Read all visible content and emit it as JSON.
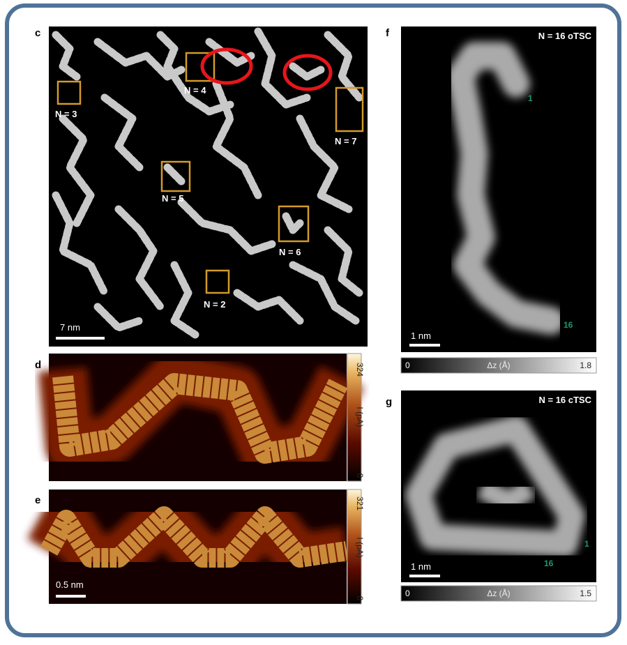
{
  "panels": {
    "c": {
      "label": "c",
      "annotations": [
        "N = 3",
        "N = 4",
        "N = 7",
        "N = 5",
        "N = 6",
        "N = 2"
      ],
      "scale_bar": "7 nm"
    },
    "d": {
      "label": "d",
      "colorbar": {
        "max": 324,
        "unit": "I (pA)",
        "min": 0
      }
    },
    "e": {
      "label": "e",
      "colorbar": {
        "max": 321,
        "unit": "I (pA)",
        "min": 0
      },
      "scale_bar": "0.5 nm"
    },
    "f": {
      "label": "f",
      "title": "N = 16 oTSC",
      "markers": [
        "1",
        "16"
      ],
      "scale_bar": "1 nm",
      "colorbar": {
        "min": 0,
        "unit": "Δz (Å)",
        "max": 1.8
      }
    },
    "g": {
      "label": "g",
      "title": "N = 16 cTSC",
      "markers": [
        "1",
        "16"
      ],
      "scale_bar": "1 nm",
      "colorbar": {
        "min": 0,
        "unit": "Δz (Å)",
        "max": 1.5
      }
    }
  }
}
